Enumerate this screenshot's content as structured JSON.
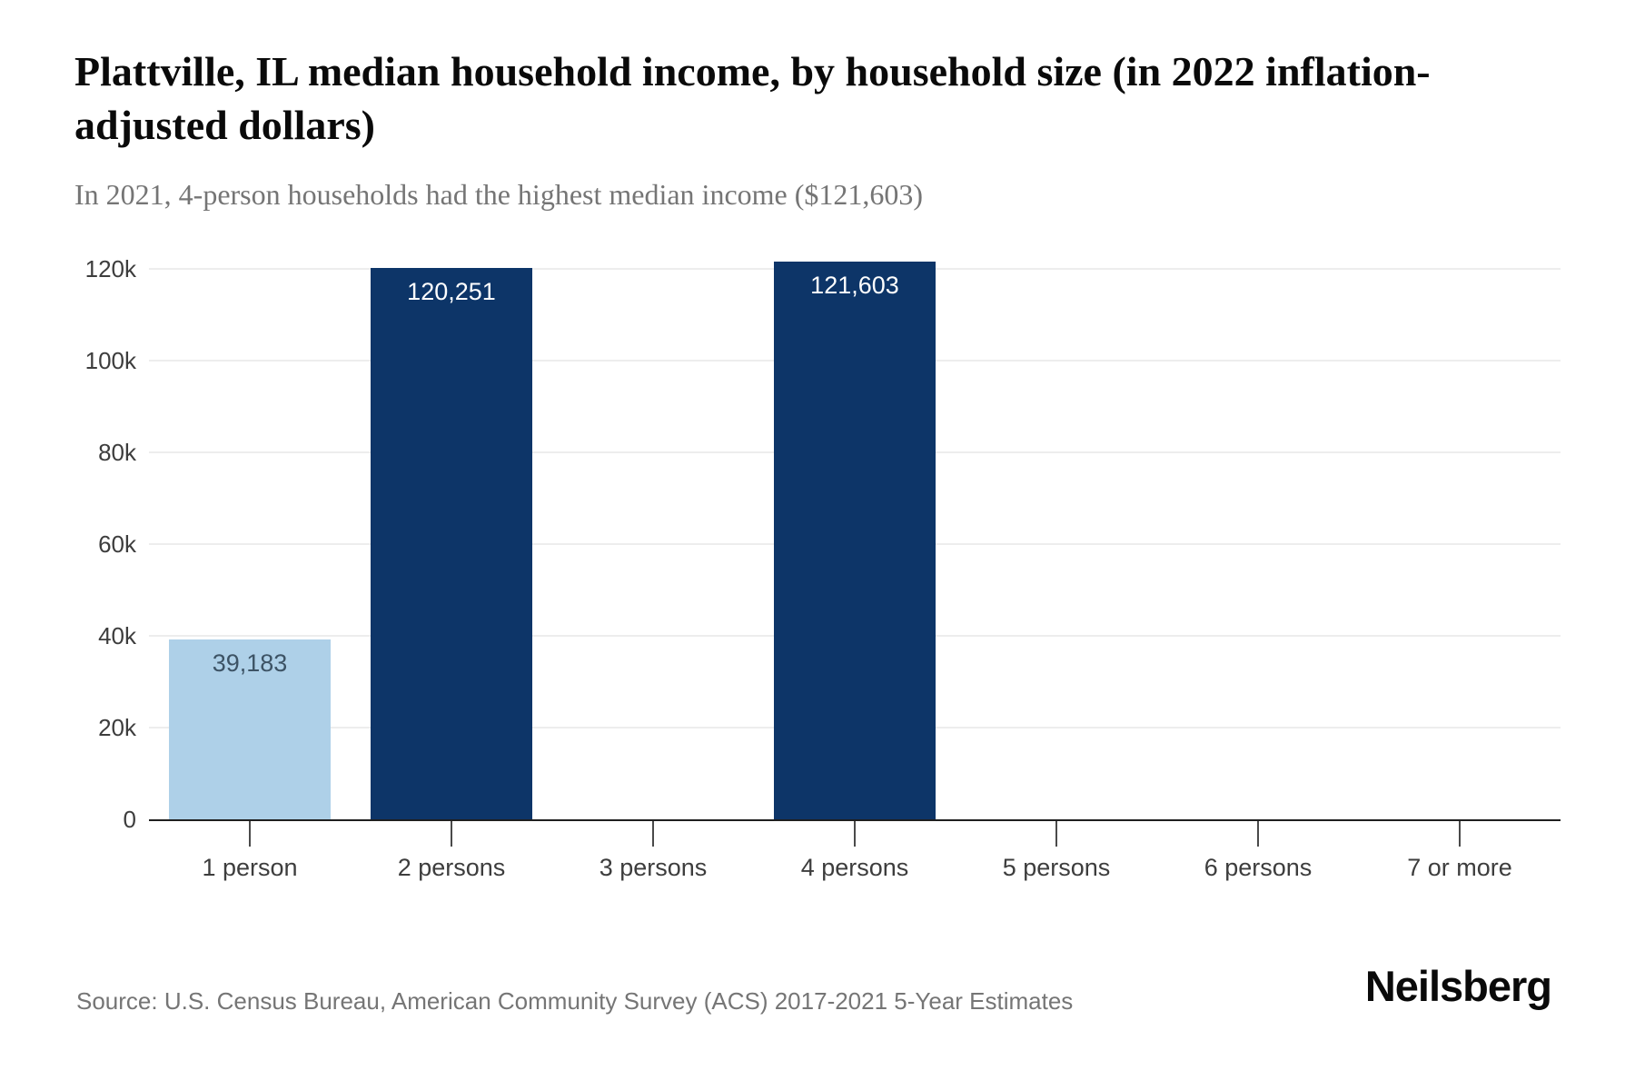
{
  "header": {
    "title": "Plattville, IL median household income, by household size (in 2022 inflation-adjusted dollars)",
    "subtitle": "In 2021, 4-person households had the highest median income ($121,603)"
  },
  "chart_data": {
    "type": "bar",
    "title": "Plattville, IL median household income, by household size (in 2022 inflation-adjusted dollars)",
    "subtitle": "In 2021, 4-person households had the highest median income ($121,603)",
    "categories": [
      "1 person",
      "2 persons",
      "3 persons",
      "4 persons",
      "5 persons",
      "6 persons",
      "7 or more"
    ],
    "values": [
      39183,
      120251,
      0,
      121603,
      0,
      0,
      0
    ],
    "bar_labels": [
      "39,183",
      "120,251",
      "",
      "121,603",
      "",
      "",
      ""
    ],
    "xlabel": "",
    "ylabel": "",
    "ylim": [
      0,
      127000
    ],
    "yticks": [
      {
        "value": 0,
        "label": "0"
      },
      {
        "value": 20000,
        "label": "20k"
      },
      {
        "value": 40000,
        "label": "40k"
      },
      {
        "value": 60000,
        "label": "60k"
      },
      {
        "value": 80000,
        "label": "80k"
      },
      {
        "value": 100000,
        "label": "100k"
      },
      {
        "value": 120000,
        "label": "120k"
      }
    ],
    "grid": "horizontal-only",
    "legend": "none",
    "colors": {
      "bar_default": "#0d3568",
      "bar_highlight_first": "#aed0e8",
      "label_on_dark": "#ffffff",
      "label_on_light": "#3d5365"
    },
    "per_bar_colors": [
      "#aed0e8",
      "#0d3568",
      "#0d3568",
      "#0d3568",
      "#0d3568",
      "#0d3568",
      "#0d3568"
    ],
    "per_bar_label_colors": [
      "#3d5365",
      "#ffffff",
      "#ffffff",
      "#ffffff",
      "#ffffff",
      "#ffffff",
      "#ffffff"
    ]
  },
  "footer": {
    "source": "Source: U.S. Census Bureau, American Community Survey (ACS) 2017-2021 5-Year Estimates",
    "logo": "Neilsberg"
  }
}
